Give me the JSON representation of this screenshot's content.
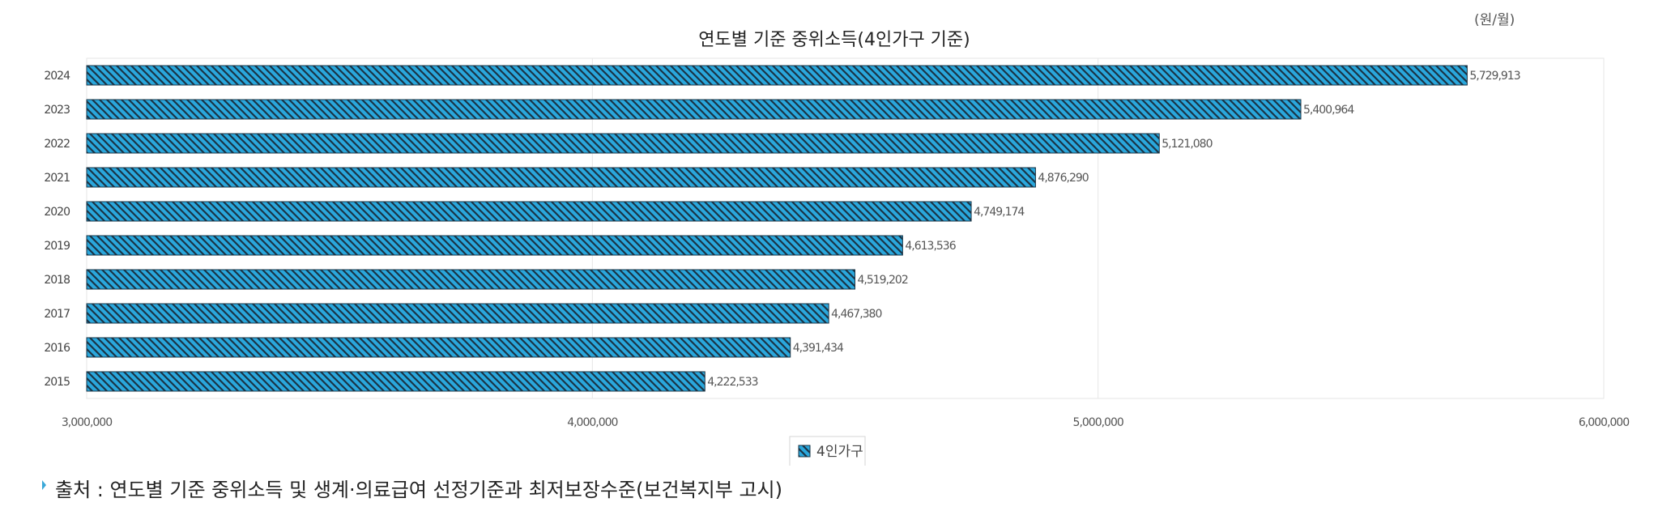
{
  "unit_label": "(원/월)",
  "source_note": "출처 : 연도별 기준 중위소득 및 생계·의료급여 선정기준과 최저보장수준(보건복지부 고시)",
  "colors": {
    "bar_fill": "#2aa7dc",
    "hatch": "#1a3446",
    "grid": "#e6e6e6",
    "value_label": "#555555"
  },
  "chart_data": {
    "type": "bar",
    "orientation": "horizontal",
    "title": "연도별 기준 중위소득(4인가구 기준)",
    "categories": [
      "2024",
      "2023",
      "2022",
      "2021",
      "2020",
      "2019",
      "2018",
      "2017",
      "2016",
      "2015"
    ],
    "series": [
      {
        "name": "4인가구",
        "values": [
          5729913,
          5400964,
          5121080,
          4876290,
          4749174,
          4613536,
          4519202,
          4467380,
          4391434,
          4222533
        ],
        "value_labels": [
          "5,729,913",
          "5,400,964",
          "5,121,080",
          "4,876,290",
          "4,749,174",
          "4,613,536",
          "4,519,202",
          "4,467,380",
          "4,391,434",
          "4,222,533"
        ]
      }
    ],
    "xlim": [
      3000000,
      6000000
    ],
    "x_ticks": [
      3000000,
      4000000,
      5000000,
      6000000
    ],
    "x_tick_labels": [
      "3,000,000",
      "4,000,000",
      "5,000,000",
      "6,000,000"
    ],
    "grid": true,
    "legend": "bottom-center"
  }
}
